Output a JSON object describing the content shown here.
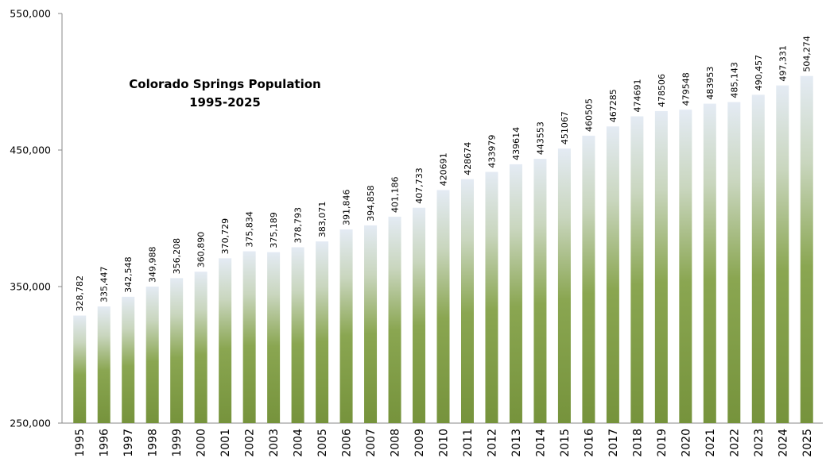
{
  "chart_data": {
    "type": "bar",
    "title": "Colorado Springs Population",
    "subtitle": "1995-2025",
    "categories": [
      "1995",
      "1996",
      "1997",
      "1998",
      "1999",
      "2000",
      "2001",
      "2002",
      "2003",
      "2004",
      "2005",
      "2006",
      "2007",
      "2008",
      "2009",
      "2010",
      "2011",
      "2012",
      "2013",
      "2014",
      "2015",
      "2016",
      "2017",
      "2018",
      "2019",
      "2020",
      "2021",
      "2022",
      "2023",
      "2024",
      "2025"
    ],
    "values": [
      328782,
      335447,
      342548,
      349988,
      356208,
      360890,
      370729,
      375834,
      375189,
      378793,
      383071,
      391846,
      394858,
      401186,
      407733,
      420691,
      428674,
      433979,
      439614,
      443553,
      451067,
      460505,
      467285,
      474691,
      478506,
      479548,
      483953,
      485143,
      490457,
      497331,
      504274
    ],
    "value_labels": [
      "328,782",
      "335,447",
      "342,548",
      "349,988",
      "356,208",
      "360,890",
      "370,729",
      "375,834",
      "375,189",
      "378,793",
      "383,071",
      "391,846",
      "394,858",
      "401,186",
      "407,733",
      "420691",
      "428674",
      "433979",
      "439614",
      "443553",
      "451067",
      "460505",
      "467285",
      "474691",
      "478506",
      "479548",
      "483953",
      "485,143",
      "490,457",
      "497,331",
      "504,274"
    ],
    "color": "#76933c",
    "ylim": [
      250000,
      550000
    ],
    "yticks": [
      {
        "value": 250000,
        "label": "250,000"
      },
      {
        "value": 350000,
        "label": "350,000"
      },
      {
        "value": 450000,
        "label": "450,000"
      },
      {
        "value": 550000,
        "label": "550,000"
      }
    ],
    "grid": false
  }
}
